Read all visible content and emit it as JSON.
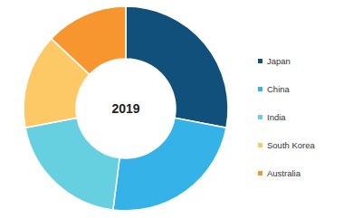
{
  "chart_data": {
    "type": "pie",
    "title": "2019",
    "categories": [
      "Japan",
      "China",
      "India",
      "South Korea",
      "Australia"
    ],
    "values": [
      28,
      24,
      20,
      15,
      13
    ],
    "colors": [
      "#12507c",
      "#35b2e8",
      "#66cfe0",
      "#fdc966",
      "#f7962f"
    ],
    "legend": "right"
  }
}
